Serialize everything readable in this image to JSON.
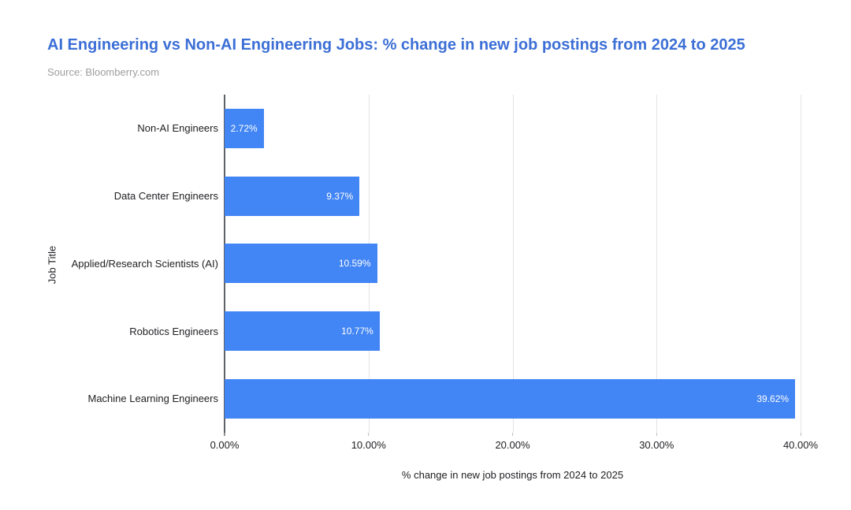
{
  "chart_data": {
    "type": "bar",
    "orientation": "horizontal",
    "title": "AI Engineering vs Non-AI Engineering Jobs: % change in new job postings from 2024 to 2025",
    "source": "Source: Bloomberry.com",
    "categories": [
      "Non-AI Engineers",
      "Data Center Engineers",
      "Applied/Research Scientists (AI)",
      "Robotics Engineers",
      "Machine Learning Engineers"
    ],
    "values": [
      2.72,
      9.37,
      10.59,
      10.77,
      39.62
    ],
    "value_labels": [
      "2.72%",
      "9.37%",
      "10.59%",
      "10.77%",
      "39.62%"
    ],
    "xlabel": "% change in new job postings from 2024 to 2025",
    "ylabel": "Job Title",
    "xlim": [
      0,
      40
    ],
    "x_ticks": [
      {
        "value": 0,
        "label": "0.00%"
      },
      {
        "value": 10,
        "label": "10.00%"
      },
      {
        "value": 20,
        "label": "20.00%"
      },
      {
        "value": 30,
        "label": "30.00%"
      },
      {
        "value": 40,
        "label": "40.00%"
      }
    ],
    "grid": true,
    "legend": "none",
    "colors": {
      "bar": "#4285f4",
      "value_label": "#ffffff",
      "title": "#3c6fd6",
      "source": "#9e9e9e",
      "axis_line": "#5f6368",
      "gridline": "#e3e3e3",
      "text": "#202124"
    }
  }
}
